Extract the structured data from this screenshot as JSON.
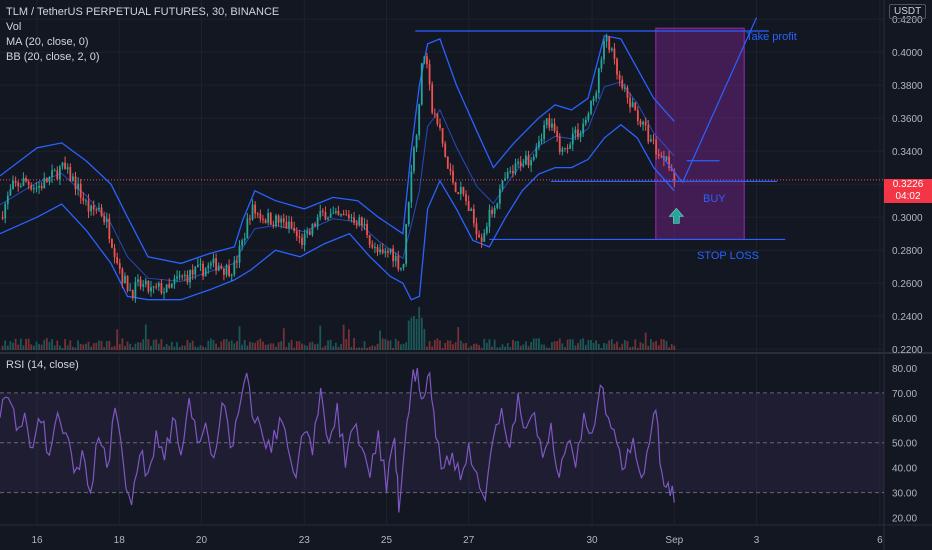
{
  "legend": {
    "title": "TLM / TetherUS PERPETUAL FUTURES, 30, BINANCE",
    "vol": "Vol",
    "ma": "MA (20, close, 0)",
    "bb": "BB (20, close, 2, 0)"
  },
  "rsi_legend": "RSI (14, close)",
  "currency": "USDT",
  "last_price": {
    "value": "0.3226",
    "countdown": "04:02"
  },
  "annotations": {
    "take_profit": "Take profit",
    "buy": "BUY",
    "stop_loss": "STOP LOSS"
  },
  "colors": {
    "background": "#131722",
    "up": "#26a69a",
    "down": "#ef5350",
    "bollinger": "#2962ff",
    "ma": "#2962ff",
    "rsi": "#7e57c2",
    "position_box": "#9c27b0",
    "annotation": "#2962ff"
  },
  "chart_data": {
    "type": "candlestick",
    "price_axis": {
      "ticks": [
        "0.4200",
        "0.4000",
        "0.3800",
        "0.3600",
        "0.3400",
        "0.3200",
        "0.3000",
        "0.2800",
        "0.2600",
        "0.2400",
        "0.2200"
      ],
      "range": [
        0.2195,
        0.4225
      ]
    },
    "rsi_axis": {
      "ticks": [
        "80.00",
        "70.00",
        "60.00",
        "50.00",
        "40.00",
        "30.00",
        "20.00"
      ],
      "range": [
        17,
        84
      ],
      "band": [
        30,
        70
      ]
    },
    "x_labels": [
      {
        "label": "16",
        "t": 16
      },
      {
        "label": "18",
        "t": 18
      },
      {
        "label": "20",
        "t": 20
      },
      {
        "label": "23",
        "t": 22.5
      },
      {
        "label": "25",
        "t": 24.5
      },
      {
        "label": "27",
        "t": 26.5
      },
      {
        "label": "30",
        "t": 29.5
      },
      {
        "label": "Sep",
        "t": 31.5
      },
      {
        "label": "3",
        "t": 33.5
      },
      {
        "label": "6",
        "t": 36.5
      }
    ],
    "x_range": [
      15.1,
      36.6
    ],
    "price_path": [
      [
        15.1,
        0.3
      ],
      [
        15.4,
        0.318
      ],
      [
        15.7,
        0.322
      ],
      [
        16.0,
        0.318
      ],
      [
        16.3,
        0.323
      ],
      [
        16.6,
        0.33
      ],
      [
        16.9,
        0.322
      ],
      [
        17.1,
        0.312
      ],
      [
        17.3,
        0.303
      ],
      [
        17.5,
        0.306
      ],
      [
        17.7,
        0.296
      ],
      [
        17.9,
        0.279
      ],
      [
        18.1,
        0.262
      ],
      [
        18.3,
        0.255
      ],
      [
        18.5,
        0.259
      ],
      [
        18.8,
        0.255
      ],
      [
        19.0,
        0.257
      ],
      [
        19.2,
        0.255
      ],
      [
        19.4,
        0.262
      ],
      [
        19.6,
        0.264
      ],
      [
        19.8,
        0.266
      ],
      [
        20.0,
        0.268
      ],
      [
        20.2,
        0.27
      ],
      [
        20.4,
        0.272
      ],
      [
        20.6,
        0.268
      ],
      [
        20.8,
        0.27
      ],
      [
        21.0,
        0.285
      ],
      [
        21.2,
        0.305
      ],
      [
        21.5,
        0.3
      ],
      [
        21.8,
        0.298
      ],
      [
        22.0,
        0.296
      ],
      [
        22.2,
        0.293
      ],
      [
        22.4,
        0.285
      ],
      [
        22.6,
        0.288
      ],
      [
        22.8,
        0.298
      ],
      [
        23.0,
        0.303
      ],
      [
        23.3,
        0.299
      ],
      [
        23.6,
        0.301
      ],
      [
        23.8,
        0.298
      ],
      [
        24.0,
        0.293
      ],
      [
        24.2,
        0.28
      ],
      [
        24.4,
        0.276
      ],
      [
        24.6,
        0.28
      ],
      [
        24.8,
        0.272
      ],
      [
        24.9,
        0.268
      ],
      [
        25.0,
        0.3
      ],
      [
        25.1,
        0.33
      ],
      [
        25.2,
        0.345
      ],
      [
        25.35,
        0.388
      ],
      [
        25.45,
        0.405
      ],
      [
        25.6,
        0.365
      ],
      [
        25.8,
        0.352
      ],
      [
        26.0,
        0.328
      ],
      [
        26.2,
        0.318
      ],
      [
        26.4,
        0.312
      ],
      [
        26.6,
        0.298
      ],
      [
        26.8,
        0.288
      ],
      [
        27.0,
        0.3
      ],
      [
        27.2,
        0.312
      ],
      [
        27.4,
        0.323
      ],
      [
        27.6,
        0.328
      ],
      [
        27.8,
        0.335
      ],
      [
        28.0,
        0.336
      ],
      [
        28.2,
        0.348
      ],
      [
        28.4,
        0.358
      ],
      [
        28.6,
        0.35
      ],
      [
        28.8,
        0.338
      ],
      [
        29.0,
        0.35
      ],
      [
        29.2,
        0.352
      ],
      [
        29.4,
        0.362
      ],
      [
        29.55,
        0.372
      ],
      [
        29.7,
        0.392
      ],
      [
        29.85,
        0.41
      ],
      [
        30.0,
        0.396
      ],
      [
        30.2,
        0.378
      ],
      [
        30.4,
        0.37
      ],
      [
        30.6,
        0.362
      ],
      [
        30.8,
        0.352
      ],
      [
        31.0,
        0.344
      ],
      [
        31.2,
        0.335
      ],
      [
        31.3,
        0.34
      ],
      [
        31.4,
        0.332
      ],
      [
        31.5,
        0.3226
      ]
    ],
    "bb_upper": [
      [
        15.1,
        0.325
      ],
      [
        16.0,
        0.342
      ],
      [
        16.6,
        0.345
      ],
      [
        17.2,
        0.334
      ],
      [
        17.8,
        0.32
      ],
      [
        18.2,
        0.3
      ],
      [
        18.7,
        0.276
      ],
      [
        19.5,
        0.272
      ],
      [
        20.2,
        0.278
      ],
      [
        20.8,
        0.282
      ],
      [
        21.0,
        0.298
      ],
      [
        21.3,
        0.316
      ],
      [
        21.8,
        0.31
      ],
      [
        22.5,
        0.305
      ],
      [
        23.2,
        0.312
      ],
      [
        23.8,
        0.31
      ],
      [
        24.3,
        0.3
      ],
      [
        24.9,
        0.29
      ],
      [
        25.1,
        0.34
      ],
      [
        25.3,
        0.38
      ],
      [
        25.5,
        0.405
      ],
      [
        25.8,
        0.408
      ],
      [
        26.2,
        0.38
      ],
      [
        26.7,
        0.352
      ],
      [
        27.1,
        0.33
      ],
      [
        27.6,
        0.345
      ],
      [
        28.2,
        0.36
      ],
      [
        28.6,
        0.368
      ],
      [
        29.0,
        0.365
      ],
      [
        29.4,
        0.372
      ],
      [
        29.8,
        0.41
      ],
      [
        30.2,
        0.408
      ],
      [
        30.6,
        0.39
      ],
      [
        31.0,
        0.372
      ],
      [
        31.5,
        0.358
      ]
    ],
    "bb_lower": [
      [
        15.1,
        0.29
      ],
      [
        16.0,
        0.3
      ],
      [
        16.6,
        0.308
      ],
      [
        17.2,
        0.292
      ],
      [
        17.8,
        0.272
      ],
      [
        18.2,
        0.252
      ],
      [
        18.7,
        0.25
      ],
      [
        19.5,
        0.25
      ],
      [
        20.2,
        0.256
      ],
      [
        20.8,
        0.262
      ],
      [
        21.2,
        0.268
      ],
      [
        21.8,
        0.28
      ],
      [
        22.4,
        0.276
      ],
      [
        23.0,
        0.284
      ],
      [
        23.6,
        0.29
      ],
      [
        24.1,
        0.276
      ],
      [
        24.6,
        0.264
      ],
      [
        24.9,
        0.26
      ],
      [
        25.1,
        0.25
      ],
      [
        25.3,
        0.252
      ],
      [
        25.5,
        0.305
      ],
      [
        25.8,
        0.322
      ],
      [
        26.2,
        0.305
      ],
      [
        26.6,
        0.286
      ],
      [
        27.0,
        0.282
      ],
      [
        27.4,
        0.3
      ],
      [
        27.8,
        0.316
      ],
      [
        28.2,
        0.326
      ],
      [
        28.6,
        0.33
      ],
      [
        29.0,
        0.33
      ],
      [
        29.4,
        0.335
      ],
      [
        29.8,
        0.348
      ],
      [
        30.2,
        0.356
      ],
      [
        30.6,
        0.348
      ],
      [
        31.0,
        0.33
      ],
      [
        31.5,
        0.316
      ]
    ],
    "rsi_path": [
      [
        15.1,
        60
      ],
      [
        15.3,
        68
      ],
      [
        15.5,
        55
      ],
      [
        15.7,
        62
      ],
      [
        15.9,
        48
      ],
      [
        16.1,
        58
      ],
      [
        16.3,
        45
      ],
      [
        16.5,
        62
      ],
      [
        16.7,
        54
      ],
      [
        16.9,
        38
      ],
      [
        17.1,
        47
      ],
      [
        17.3,
        30
      ],
      [
        17.5,
        52
      ],
      [
        17.7,
        40
      ],
      [
        17.9,
        64
      ],
      [
        18.1,
        42
      ],
      [
        18.3,
        25
      ],
      [
        18.5,
        45
      ],
      [
        18.7,
        38
      ],
      [
        18.9,
        55
      ],
      [
        19.1,
        43
      ],
      [
        19.3,
        60
      ],
      [
        19.5,
        45
      ],
      [
        19.7,
        68
      ],
      [
        19.9,
        50
      ],
      [
        20.1,
        58
      ],
      [
        20.3,
        44
      ],
      [
        20.5,
        66
      ],
      [
        20.7,
        48
      ],
      [
        20.9,
        62
      ],
      [
        21.1,
        78
      ],
      [
        21.3,
        58
      ],
      [
        21.5,
        52
      ],
      [
        21.7,
        46
      ],
      [
        21.9,
        60
      ],
      [
        22.1,
        48
      ],
      [
        22.3,
        36
      ],
      [
        22.5,
        54
      ],
      [
        22.7,
        45
      ],
      [
        22.9,
        72
      ],
      [
        23.1,
        50
      ],
      [
        23.3,
        66
      ],
      [
        23.5,
        40
      ],
      [
        23.7,
        56
      ],
      [
        23.9,
        48
      ],
      [
        24.1,
        36
      ],
      [
        24.3,
        55
      ],
      [
        24.5,
        30
      ],
      [
        24.7,
        52
      ],
      [
        24.8,
        22
      ],
      [
        24.95,
        50
      ],
      [
        25.1,
        72
      ],
      [
        25.25,
        80
      ],
      [
        25.4,
        68
      ],
      [
        25.55,
        78
      ],
      [
        25.7,
        52
      ],
      [
        25.9,
        40
      ],
      [
        26.1,
        46
      ],
      [
        26.3,
        35
      ],
      [
        26.5,
        50
      ],
      [
        26.7,
        38
      ],
      [
        26.9,
        27
      ],
      [
        27.1,
        52
      ],
      [
        27.3,
        64
      ],
      [
        27.5,
        48
      ],
      [
        27.7,
        70
      ],
      [
        27.9,
        56
      ],
      [
        28.1,
        62
      ],
      [
        28.3,
        44
      ],
      [
        28.5,
        58
      ],
      [
        28.7,
        36
      ],
      [
        28.9,
        50
      ],
      [
        29.1,
        40
      ],
      [
        29.3,
        62
      ],
      [
        29.5,
        54
      ],
      [
        29.7,
        73
      ],
      [
        29.9,
        60
      ],
      [
        30.1,
        50
      ],
      [
        30.3,
        40
      ],
      [
        30.5,
        52
      ],
      [
        30.7,
        36
      ],
      [
        30.9,
        50
      ],
      [
        31.05,
        63
      ],
      [
        31.2,
        38
      ],
      [
        31.35,
        34
      ],
      [
        31.5,
        26
      ]
    ],
    "lines": [
      {
        "name": "range-top",
        "from": [
          25.2,
          0.4128
        ],
        "to": [
          33.8,
          0.4128
        ]
      },
      {
        "name": "range-bottom",
        "from": [
          27.0,
          0.2865
        ],
        "to": [
          34.2,
          0.2865
        ]
      },
      {
        "name": "buy-level",
        "from": [
          28.5,
          0.3217
        ],
        "to": [
          34.0,
          0.3217
        ]
      },
      {
        "name": "trend-up",
        "from": [
          31.7,
          0.321
        ],
        "to": [
          33.5,
          0.421
        ]
      },
      {
        "name": "trend-down",
        "from": [
          31.2,
          0.337
        ],
        "to": [
          31.7,
          0.321
        ]
      },
      {
        "name": "target-mark",
        "from": [
          31.8,
          0.3342
        ],
        "to": [
          32.6,
          0.3342
        ]
      }
    ],
    "position_box": {
      "x": [
        31.05,
        33.2
      ],
      "y": [
        0.2865,
        0.4145
      ]
    },
    "price_ref_line": 0.3226
  }
}
